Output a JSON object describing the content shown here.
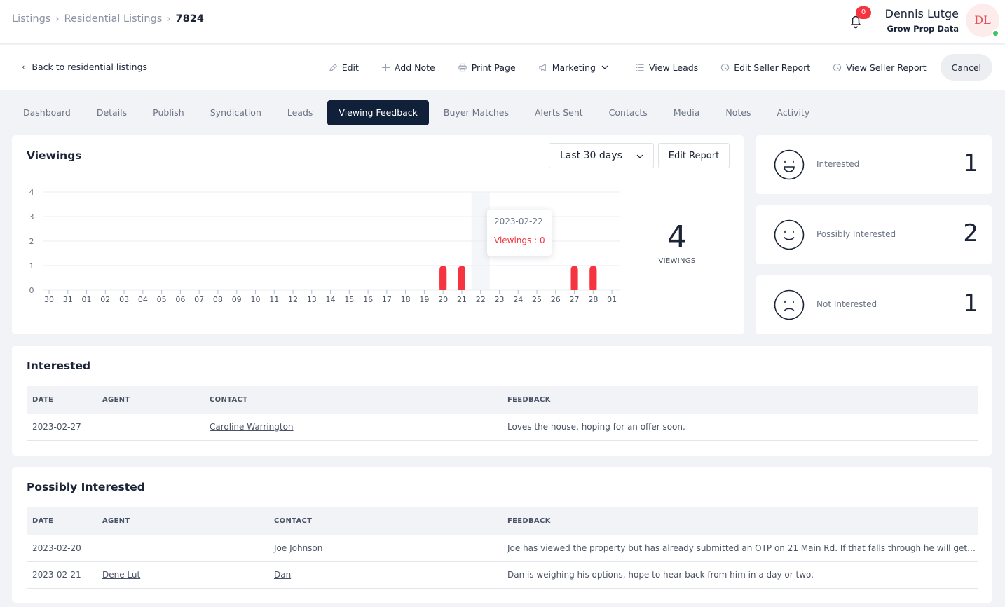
{
  "breadcrumb": {
    "items": [
      "Listings",
      "Residential Listings"
    ],
    "current": "7824"
  },
  "header": {
    "notification_count": "0",
    "user_name": "Dennis Lutge",
    "user_org": "Grow Prop Data",
    "avatar_initials": "DL"
  },
  "actionbar": {
    "back_label": "Back to residential listings",
    "edit": "Edit",
    "add_note": "Add Note",
    "print_page": "Print Page",
    "marketing": "Marketing",
    "view_leads": "View Leads",
    "edit_seller_report": "Edit Seller Report",
    "view_seller_report": "View Seller Report",
    "cancel": "Cancel"
  },
  "tabs": [
    "Dashboard",
    "Details",
    "Publish",
    "Syndication",
    "Leads",
    "Viewing Feedback",
    "Buyer Matches",
    "Alerts Sent",
    "Contacts",
    "Media",
    "Notes",
    "Activity"
  ],
  "active_tab": "Viewing Feedback",
  "viewings": {
    "title": "Viewings",
    "range": "Last 30 days",
    "edit_report": "Edit Report",
    "total": "4",
    "total_label": "VIEWINGS",
    "tooltip": {
      "date": "2023-02-22",
      "value": "Viewings : 0"
    }
  },
  "chart_data": {
    "type": "bar",
    "categories": [
      "30",
      "31",
      "01",
      "02",
      "03",
      "04",
      "05",
      "06",
      "07",
      "08",
      "09",
      "10",
      "11",
      "12",
      "13",
      "14",
      "15",
      "16",
      "17",
      "18",
      "19",
      "20",
      "21",
      "22",
      "23",
      "24",
      "25",
      "26",
      "27",
      "28",
      "01"
    ],
    "values": [
      0,
      0,
      0,
      0,
      0,
      0,
      0,
      0,
      0,
      0,
      0,
      0,
      0,
      0,
      0,
      0,
      0,
      0,
      0,
      0,
      0,
      1,
      1,
      0,
      0,
      0,
      0,
      0,
      1,
      1,
      0
    ],
    "yticks": [
      "0",
      "1",
      "2",
      "3",
      "4"
    ],
    "ylim": [
      0,
      4
    ],
    "highlight_index": 23,
    "bar_color": "#f5343f"
  },
  "sentiment": [
    {
      "label": "Interested",
      "count": "1",
      "face": "happy-face-icon"
    },
    {
      "label": "Possibly Interested",
      "count": "2",
      "face": "smile-face-icon"
    },
    {
      "label": "Not Interested",
      "count": "1",
      "face": "sad-face-icon"
    }
  ],
  "interested": {
    "title": "Interested",
    "columns": [
      "DATE",
      "AGENT",
      "CONTACT",
      "FEEDBACK"
    ],
    "rows": [
      {
        "date": "2023-02-27",
        "agent": "",
        "contact": "Caroline Warrington",
        "feedback": "Loves the house, hoping for an offer soon."
      }
    ]
  },
  "possibly_interested": {
    "title": "Possibly Interested",
    "columns": [
      "DATE",
      "AGENT",
      "CONTACT",
      "FEEDBACK"
    ],
    "rows": [
      {
        "date": "2023-02-20",
        "agent": "",
        "contact": "Joe Johnson",
        "feedback": "Joe has viewed the property but has already submitted an OTP on 21 Main Rd. If that falls through he will get i..."
      },
      {
        "date": "2023-02-21",
        "agent": "Dene Lut",
        "contact": "Dan",
        "feedback": "Dan is weighing his options, hope to hear back from him in a day or two."
      }
    ]
  }
}
